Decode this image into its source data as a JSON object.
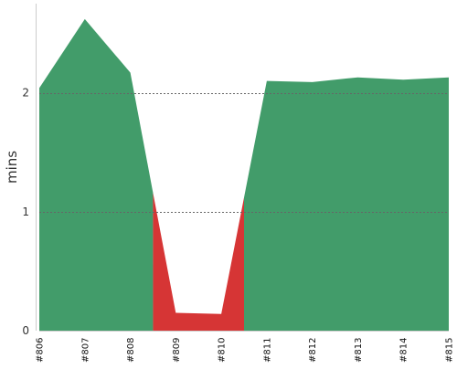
{
  "chart_data": {
    "type": "area",
    "title": "",
    "xlabel": "",
    "ylabel": "mins",
    "ylim": [
      0,
      2.75
    ],
    "yticks": [
      0,
      1,
      2
    ],
    "grid": "horizontal-dotted",
    "categories": [
      "#806",
      "#807",
      "#808",
      "#809",
      "#810",
      "#811",
      "#812",
      "#813",
      "#814",
      "#815"
    ],
    "values": [
      2.04,
      2.62,
      2.17,
      0.15,
      0.14,
      2.1,
      2.09,
      2.13,
      2.11,
      2.13
    ],
    "colors": {
      "good": "#429c6a",
      "bad": "#d63535",
      "grid": "#666666",
      "axis": "#cccccc"
    },
    "segments": [
      {
        "status": "good",
        "range": [
          "#806",
          "#808"
        ]
      },
      {
        "status": "bad",
        "range": [
          "#809",
          "#810"
        ]
      },
      {
        "status": "good",
        "range": [
          "#811",
          "#815"
        ]
      }
    ]
  }
}
